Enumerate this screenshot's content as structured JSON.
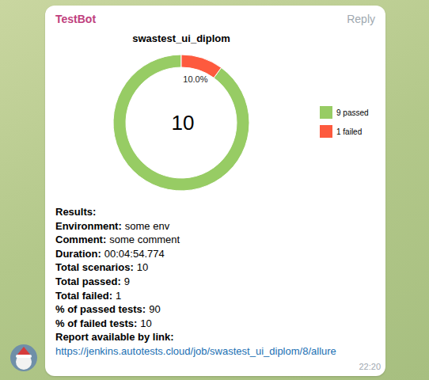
{
  "header": {
    "sender": "TestBot",
    "action": "Reply"
  },
  "chart_data": {
    "type": "donut",
    "title": "swastest_ui_diplom",
    "categories": [
      "9 passed",
      "1 failed"
    ],
    "values": [
      9,
      1
    ],
    "colors": [
      "#97cc64",
      "#fd5a3e"
    ],
    "legend": "right",
    "annotations": [
      {
        "text": "10.0%"
      },
      {
        "text": "10"
      }
    ]
  },
  "results": {
    "heading": "Results:",
    "rows": [
      {
        "label": "Environment:",
        "value": "some env"
      },
      {
        "label": "Comment:",
        "value": "some comment"
      },
      {
        "label": "Duration:",
        "value": "00:04:54.774"
      },
      {
        "label": "Total scenarios:",
        "value": 10
      },
      {
        "label": "Total passed:",
        "value": 9
      },
      {
        "label": "Total failed:",
        "value": 1
      },
      {
        "label": "% of passed tests:",
        "value": 90
      },
      {
        "label": "% of failed tests:",
        "value": 10
      }
    ],
    "link_label": "Report available by link:",
    "link": "https://jenkins.autotests.cloud/job/swastest_ui_diplom/8/allure"
  },
  "time": "22:20"
}
